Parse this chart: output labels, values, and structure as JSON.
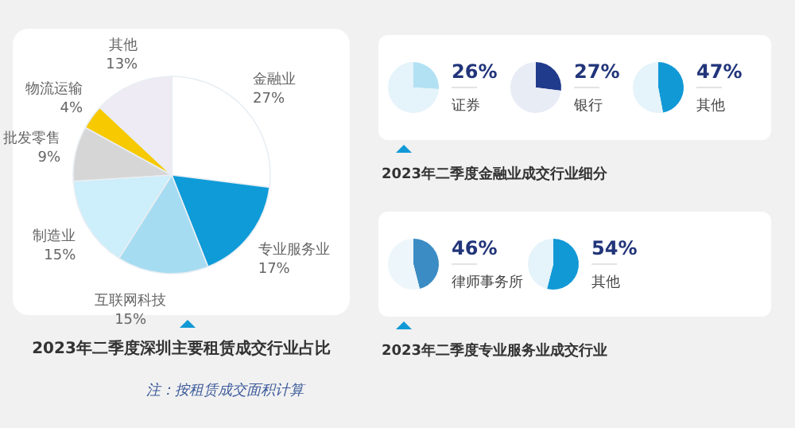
{
  "chart_data": [
    {
      "type": "pie",
      "title": "2023年二季度深圳主要租赁成交行业占比",
      "categories": [
        "金融业",
        "专业服务业",
        "互联网科技",
        "制造业",
        "批发零售",
        "物流运输",
        "其他"
      ],
      "values": [
        27,
        17,
        15,
        15,
        9,
        4,
        13
      ],
      "colors": [
        "#ffffff",
        "#0e9bd8",
        "#a6dcf1",
        "#cdeefb",
        "#d6d6d6",
        "#f7c900",
        "#efebf4"
      ],
      "value_labels": [
        "27%",
        "17%",
        "15%",
        "15%",
        "9%",
        "4%",
        "13%"
      ],
      "annotations": [
        "注：按租赁成交面积计算"
      ]
    },
    {
      "type": "pie",
      "title": "2023年二季度金融业成交行业细分",
      "categories": [
        "证券",
        null
      ],
      "values": [
        26,
        74
      ],
      "colors": [
        "#b3e1f4",
        "#e5f3fa"
      ],
      "value_labels": [
        "26%",
        null
      ]
    },
    {
      "type": "pie",
      "categories": [
        "银行",
        null
      ],
      "values": [
        27,
        73
      ],
      "colors": [
        "#203a8c",
        "#e8ecf5"
      ],
      "value_labels": [
        "27%",
        null
      ]
    },
    {
      "type": "pie",
      "categories": [
        "其他",
        null
      ],
      "values": [
        47,
        53
      ],
      "colors": [
        "#1199d6",
        "#e5f3fa"
      ],
      "value_labels": [
        "47%",
        null
      ]
    },
    {
      "type": "pie",
      "title": "2023年二季度专业服务业成交行业",
      "categories": [
        "律师事务所",
        null
      ],
      "values": [
        46,
        54
      ],
      "colors": [
        "#3b8cc4",
        "#edf6fb"
      ],
      "value_labels": [
        "46%",
        null
      ]
    },
    {
      "type": "pie",
      "categories": [
        "其他",
        null
      ],
      "values": [
        54,
        46
      ],
      "colors": [
        "#1199d6",
        "#e5f3fa"
      ],
      "value_labels": [
        "54%",
        null
      ]
    }
  ]
}
